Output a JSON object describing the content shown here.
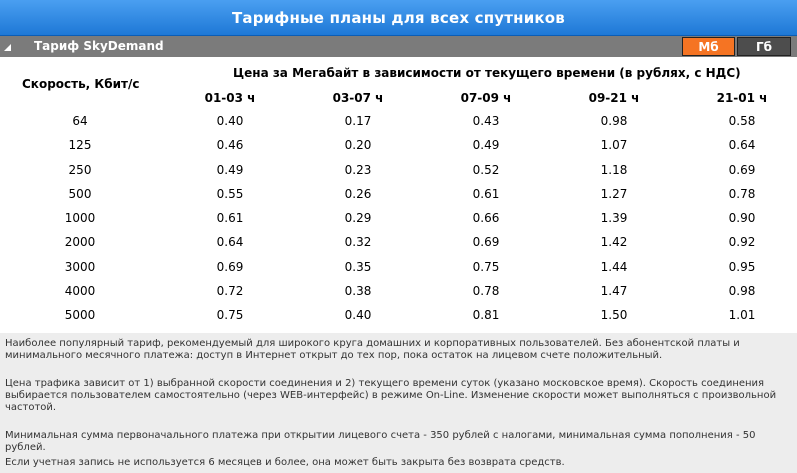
{
  "title": "Тарифные планы для всех спутников",
  "plan": {
    "name": "Тариф SkyDemand"
  },
  "units": {
    "mb": "Мб",
    "gb": "Гб"
  },
  "table": {
    "speed_header": "Скорость, Кбит/с",
    "price_header": "Цена за Мегабайт в зависимости от текущего времени (в рублях, с НДС)",
    "time_columns": [
      "01-03 ч",
      "03-07 ч",
      "07-09 ч",
      "09-21 ч",
      "21-01 ч"
    ],
    "rows": [
      {
        "speed": "64",
        "prices": [
          "0.40",
          "0.17",
          "0.43",
          "0.98",
          "0.58"
        ]
      },
      {
        "speed": "125",
        "prices": [
          "0.46",
          "0.20",
          "0.49",
          "1.07",
          "0.64"
        ]
      },
      {
        "speed": "250",
        "prices": [
          "0.49",
          "0.23",
          "0.52",
          "1.18",
          "0.69"
        ]
      },
      {
        "speed": "500",
        "prices": [
          "0.55",
          "0.26",
          "0.61",
          "1.27",
          "0.78"
        ]
      },
      {
        "speed": "1000",
        "prices": [
          "0.61",
          "0.29",
          "0.66",
          "1.39",
          "0.90"
        ]
      },
      {
        "speed": "2000",
        "prices": [
          "0.64",
          "0.32",
          "0.69",
          "1.42",
          "0.92"
        ]
      },
      {
        "speed": "3000",
        "prices": [
          "0.69",
          "0.35",
          "0.75",
          "1.44",
          "0.95"
        ]
      },
      {
        "speed": "4000",
        "prices": [
          "0.72",
          "0.38",
          "0.78",
          "1.47",
          "0.98"
        ]
      },
      {
        "speed": "5000",
        "prices": [
          "0.75",
          "0.40",
          "0.81",
          "1.50",
          "1.01"
        ]
      }
    ]
  },
  "notes": [
    "Наиболее популярный тариф, рекомендуемый для широкого круга домашних и корпоративных пользователей. Без абонентской платы и минимального месячного платежа: доступ в Интернет открыт до тех пор, пока остаток на лицевом счете положительный.",
    "Цена трафика зависит от 1) выбранной скорости соединения и 2) текущего времени суток (указано московское время). Скорость соединения выбирается пользователем самостоятельно (через WEB-интерфейс) в режиме On-Line. Изменение скорости может выполняться с произвольной частотой.",
    "Минимальная сумма первоначального платежа при открытии лицевого счета - 350 рублей с налогами, минимальная сумма пополнения - 50 рублей.",
    "Если учетная запись не используется 6 месяцев и более, она может быть закрыта без возврата средств."
  ],
  "colors": {
    "title_bg": "#2f8ae4",
    "plan_bar_bg": "#7b7b7b",
    "unit_active": "#f57423",
    "unit_inactive": "#4d4d4d",
    "notes_bg": "#ededed"
  }
}
